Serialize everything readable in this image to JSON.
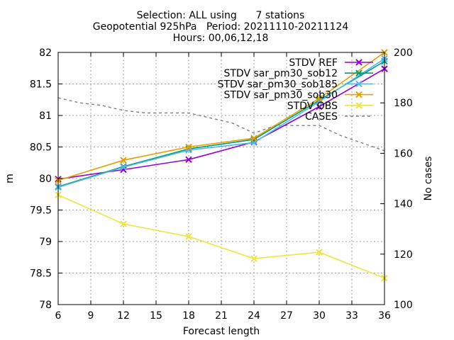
{
  "chart_data": {
    "type": "line",
    "title_lines": [
      "Selection: ALL using      7 stations",
      "Geopotential 925hPa   Period: 20211110-20211124",
      "Hours: 00,06,12,18"
    ],
    "xlabel": "Forecast length",
    "ylabel": "m",
    "y2label": "No cases",
    "xlim": [
      6,
      36
    ],
    "ylim": [
      78,
      82
    ],
    "y2lim": [
      100,
      200
    ],
    "xticks": [
      "6",
      "9",
      "12",
      "15",
      "18",
      "21",
      "24",
      "27",
      "30",
      "33",
      "36"
    ],
    "yticks": [
      "78",
      "78.5",
      "79",
      "79.5",
      "80",
      "80.5",
      "81",
      "81.5",
      "82"
    ],
    "y2ticks": [
      "100",
      "120",
      "140",
      "160",
      "180",
      "200"
    ],
    "grid": true,
    "legend_position": "top-right",
    "x": [
      6,
      12,
      18,
      24,
      30,
      36
    ],
    "series": [
      {
        "name": "STDV REF",
        "color": "#9400d3",
        "marker": "x",
        "axis": "y1",
        "values": [
          79.99,
          80.14,
          80.3,
          80.58,
          81.14,
          81.74
        ]
      },
      {
        "name": "STDV sar_pm30_sob12",
        "color": "#009e73",
        "marker": "x",
        "axis": "y1",
        "values": [
          79.87,
          80.19,
          80.47,
          80.62,
          81.24,
          81.86
        ]
      },
      {
        "name": "STDV sar_pm30_sob185",
        "color": "#56b4e9",
        "marker": "x",
        "axis": "y1",
        "values": [
          79.86,
          80.18,
          80.45,
          80.57,
          81.22,
          81.9
        ]
      },
      {
        "name": "STDV sar_pm30_sob30",
        "color": "#e69f00",
        "marker": "x",
        "axis": "y1",
        "values": [
          79.97,
          80.29,
          80.5,
          80.64,
          81.27,
          82.0
        ]
      },
      {
        "name": "STDV OBS",
        "color": "#f0e442",
        "marker": "x",
        "axis": "y1",
        "values": [
          79.74,
          79.28,
          79.08,
          78.73,
          78.83,
          78.42
        ]
      },
      {
        "name": "CASES",
        "color": "#808080",
        "marker": "none",
        "dashed": true,
        "axis": "y2",
        "x": [
          6,
          8,
          10,
          12,
          14,
          16,
          18,
          20,
          22,
          24,
          26,
          28,
          30,
          32,
          34,
          36
        ],
        "values": [
          182,
          180,
          179,
          177,
          176,
          176,
          176,
          174,
          172,
          168,
          171,
          171,
          171,
          167,
          164,
          161
        ]
      }
    ]
  }
}
